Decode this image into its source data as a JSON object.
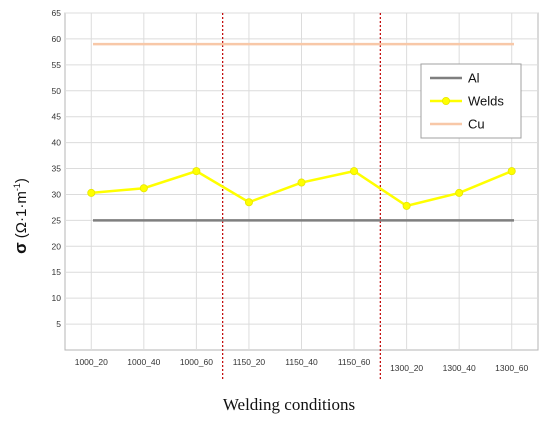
{
  "chart_data": {
    "type": "line",
    "title": "",
    "xlabel": "Welding conditions",
    "ylabel_main": "σ",
    "ylabel_units": "(Ω·1·m",
    "ylabel_sup": "-1",
    "ylabel_close": ")",
    "categories": [
      "1000_20",
      "1000_40",
      "1000_60",
      "1150_20",
      "1150_40",
      "1150_60",
      "1300_20",
      "1300_40",
      "1300_60"
    ],
    "yticks": [
      5,
      10,
      15,
      20,
      25,
      30,
      35,
      40,
      45,
      50,
      55,
      60,
      65
    ],
    "ylim": [
      0,
      65
    ],
    "grid": true,
    "legend_position": "top-right",
    "series": [
      {
        "name": "Al",
        "color": "#7f7f7f",
        "values": [
          25,
          25,
          25,
          25,
          25,
          25,
          25,
          25,
          25
        ]
      },
      {
        "name": "Welds",
        "color": "#ffff00",
        "values": [
          30.3,
          31.2,
          34.5,
          28.5,
          32.3,
          34.5,
          27.8,
          30.3,
          34.5
        ]
      },
      {
        "name": "Cu",
        "color": "#f8c8a8",
        "values": [
          59,
          59,
          59,
          59,
          59,
          59,
          59,
          59,
          59
        ]
      }
    ],
    "group_dividers": [
      "1000_60|1150_20",
      "1150_60|1300_20"
    ],
    "divider_color": "#c00000"
  }
}
